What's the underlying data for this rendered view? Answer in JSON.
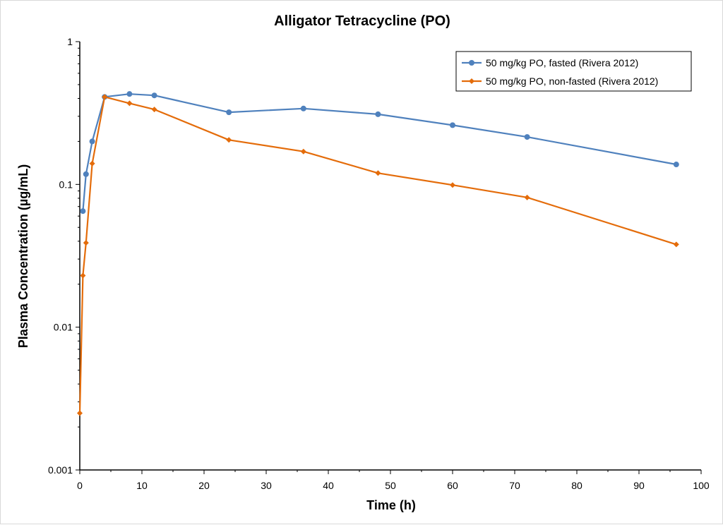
{
  "chart_data": {
    "type": "line",
    "title": "Alligator Tetracycline (PO)",
    "xlabel": "Time (h)",
    "ylabel": "Plasma Concentration (µg/mL)",
    "xlim": [
      0,
      100
    ],
    "ylim": [
      0.001,
      1
    ],
    "yscale": "log",
    "x_ticks": [
      0,
      10,
      20,
      30,
      40,
      50,
      60,
      70,
      80,
      90,
      100
    ],
    "x_tick_labels": [
      "0",
      "10",
      "20",
      "30",
      "40",
      "50",
      "60",
      "70",
      "80",
      "90",
      "100"
    ],
    "y_ticks": [
      0.001,
      0.01,
      0.1,
      1
    ],
    "y_tick_labels": [
      "0.001",
      "0.01",
      "0.1",
      "1"
    ],
    "grid": false,
    "legend_position": "top-right",
    "series": [
      {
        "name": "50 mg/kg PO, fasted (Rivera 2012)",
        "color": "#4f81bd",
        "marker": "circle",
        "x": [
          0.5,
          1,
          2,
          4,
          8,
          12,
          24,
          36,
          48,
          60,
          72,
          96
        ],
        "y": [
          0.065,
          0.118,
          0.2,
          0.41,
          0.43,
          0.42,
          0.32,
          0.34,
          0.31,
          0.26,
          0.215,
          0.138
        ]
      },
      {
        "name": "50 mg/kg PO, non-fasted (Rivera 2012)",
        "color": "#e46c0a",
        "marker": "diamond",
        "x": [
          0,
          0.5,
          1,
          2,
          4,
          8,
          12,
          24,
          36,
          48,
          60,
          72,
          96
        ],
        "y": [
          0.0025,
          0.023,
          0.039,
          0.14,
          0.41,
          0.37,
          0.335,
          0.205,
          0.17,
          0.12,
          0.099,
          0.081,
          0.038
        ]
      }
    ]
  }
}
